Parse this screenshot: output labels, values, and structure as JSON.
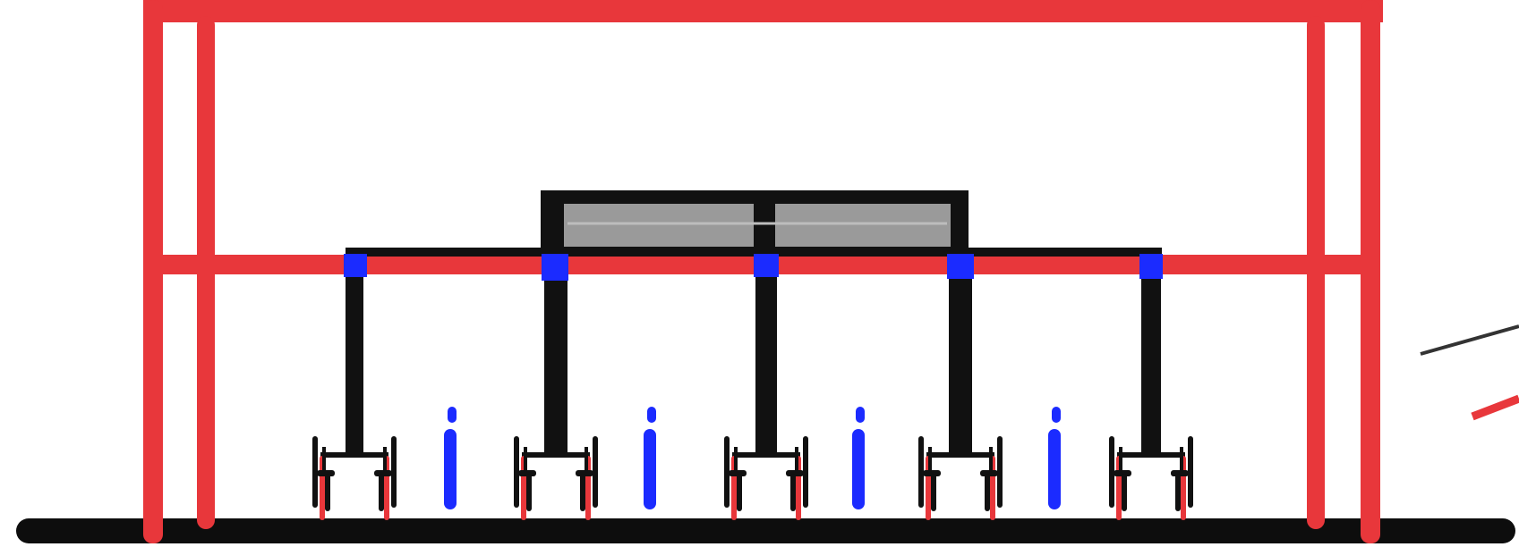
{
  "diagram": {
    "colors": {
      "frame": "#e8373b",
      "structure": "#111111",
      "joint": "#1b2bff",
      "person": "#1b2bff",
      "panel_fill": "#9a9a9a",
      "ground": "#0d0d0d",
      "accent_line_dark": "#333333",
      "accent_line_red": "#e8373b"
    },
    "elements": {
      "outer_frame": "red-frame",
      "crossbeam": "red-crossbeam",
      "overhead_panel": "gray-panel-with-divider",
      "support_posts": 5,
      "joints": 5,
      "chair_pairs": 5,
      "people": 4
    }
  }
}
